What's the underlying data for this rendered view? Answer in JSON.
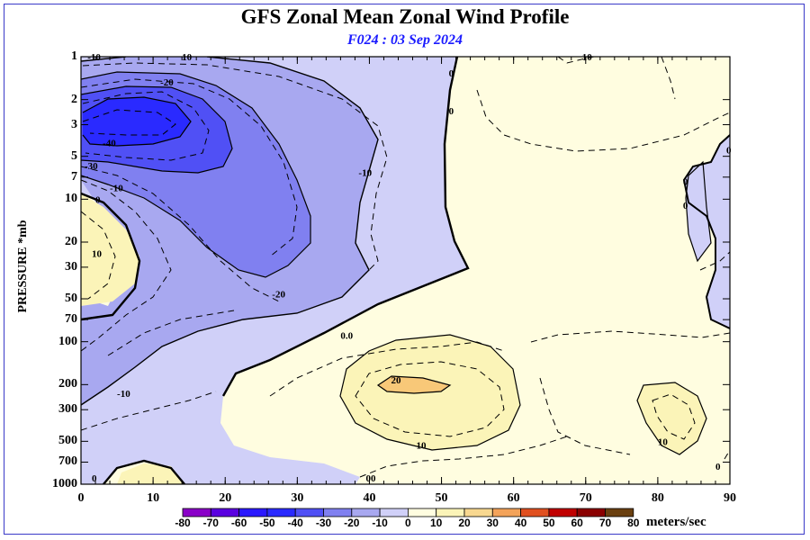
{
  "chart_data": {
    "type": "contour",
    "title": "GFS Zonal Mean Zonal Wind Profile",
    "subtitle": "F024 : 03 Sep 2024",
    "ylabel": "PRESSURE *mb",
    "xlabel": "",
    "x_ticks": [
      0,
      10,
      20,
      30,
      40,
      50,
      60,
      70,
      80,
      90
    ],
    "y_ticks": [
      "1",
      "2",
      "3",
      "5",
      "7",
      "10",
      "20",
      "30",
      "50",
      "70",
      "100",
      "200",
      "300",
      "500",
      "700",
      "1000"
    ],
    "y_values": [
      1,
      2,
      3,
      5,
      7,
      10,
      20,
      30,
      50,
      70,
      100,
      200,
      300,
      500,
      700,
      1000
    ],
    "xlim": [
      0,
      90
    ],
    "ylim": [
      1000,
      1
    ],
    "y_scale": "log",
    "colorbar": {
      "levels": [
        "-80",
        "-70",
        "-60",
        "-50",
        "-40",
        "-30",
        "-20",
        "-10",
        "0",
        "10",
        "20",
        "30",
        "40",
        "50",
        "60",
        "70",
        "80"
      ],
      "colors": [
        "#8a00c8",
        "#5a00e0",
        "#2a18ff",
        "#2a2aff",
        "#5050f5",
        "#8080f0",
        "#a8a8f0",
        "#d0d0f8",
        "#fffde0",
        "#fbf4b8",
        "#f8d890",
        "#f3a35a",
        "#e05020",
        "#c00000",
        "#8a0000",
        "#6a4010"
      ],
      "units": "meters/sec"
    },
    "contour_labels": [
      {
        "text": "-10",
        "x": 0.9,
        "p": 1
      },
      {
        "text": "10",
        "x": 14,
        "p": 1
      },
      {
        "text": "-20",
        "x": 11,
        "p": 1.5
      },
      {
        "text": "-40",
        "x": 3,
        "p": 4
      },
      {
        "text": "-30",
        "x": 0.5,
        "p": 5.8
      },
      {
        "text": "-10",
        "x": 4,
        "p": 8.3
      },
      {
        "text": "0",
        "x": 2,
        "p": 10
      },
      {
        "text": "10",
        "x": 1.5,
        "p": 24
      },
      {
        "text": "-20",
        "x": 26.5,
        "p": 46
      },
      {
        "text": "-10",
        "x": 38.5,
        "p": 6.5
      },
      {
        "text": "0",
        "x": 51,
        "p": 1.3
      },
      {
        "text": "0",
        "x": 51,
        "p": 2.4
      },
      {
        "text": "0",
        "x": 89.5,
        "p": 4.5
      },
      {
        "text": "0",
        "x": 83.5,
        "p": 7.5
      },
      {
        "text": "0",
        "x": 83.5,
        "p": 11
      },
      {
        "text": "0.0",
        "x": 36,
        "p": 90
      },
      {
        "text": "-10",
        "x": 5,
        "p": 230
      },
      {
        "text": "20",
        "x": 43,
        "p": 185
      },
      {
        "text": "10",
        "x": 46.5,
        "p": 530
      },
      {
        "text": "10",
        "x": 80,
        "p": 500
      },
      {
        "text": "0",
        "x": 1.5,
        "p": 900
      },
      {
        "text": "00",
        "x": 39.5,
        "p": 900
      },
      {
        "text": "0",
        "x": 88,
        "p": 750
      },
      {
        "text": "10",
        "x": 69.5,
        "p": 1
      }
    ]
  }
}
